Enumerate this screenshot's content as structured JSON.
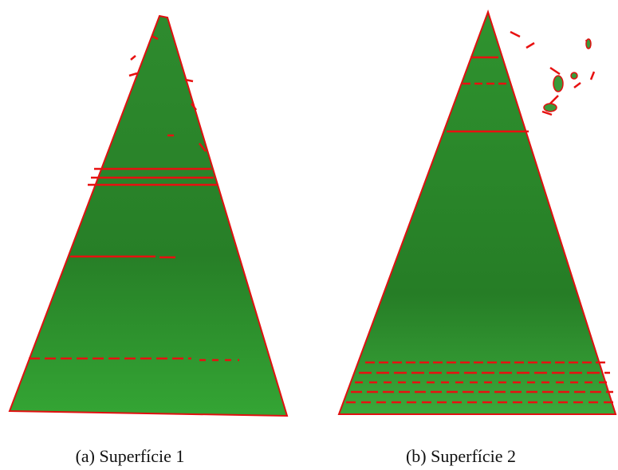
{
  "figure": {
    "subfigures": [
      {
        "caption": "(a) Superfície 1"
      },
      {
        "caption": "(b) Superfície 2"
      }
    ]
  }
}
